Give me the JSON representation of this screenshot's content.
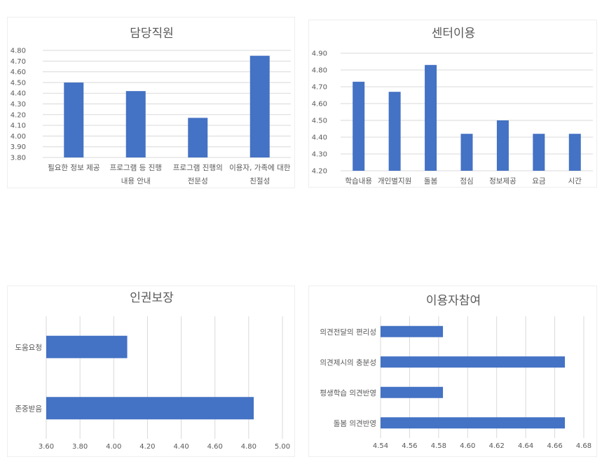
{
  "colors": {
    "bar": "#4472c4",
    "grid": "#d9d9d9",
    "text": "#595959"
  },
  "chart_data": [
    {
      "type": "bar",
      "orientation": "vertical",
      "title": "담당직원",
      "categories": [
        [
          "필요한 정보 제공"
        ],
        [
          "프로그램 등 진행",
          "내용 안내"
        ],
        [
          "프로그램 진행의",
          "전문성"
        ],
        [
          "이용자, 가족에 대한",
          "친절성"
        ]
      ],
      "values": [
        4.5,
        4.42,
        4.17,
        4.75
      ],
      "ylim": [
        3.8,
        4.8
      ],
      "yticks": [
        "3.80",
        "3.90",
        "4.00",
        "4.10",
        "4.20",
        "4.30",
        "4.40",
        "4.50",
        "4.60",
        "4.70",
        "4.80"
      ],
      "grid": true
    },
    {
      "type": "bar",
      "orientation": "vertical",
      "title": "센터이용",
      "categories": [
        [
          "학습내용"
        ],
        [
          "개인별지원"
        ],
        [
          "돌봄"
        ],
        [
          "점심"
        ],
        [
          "정보제공"
        ],
        [
          "요금"
        ],
        [
          "시간"
        ]
      ],
      "values": [
        4.73,
        4.67,
        4.83,
        4.42,
        4.5,
        4.42,
        4.42
      ],
      "ylim": [
        4.2,
        4.9
      ],
      "yticks": [
        "4.20",
        "4.30",
        "4.40",
        "4.50",
        "4.60",
        "4.70",
        "4.80",
        "4.90"
      ],
      "grid": true
    },
    {
      "type": "bar",
      "orientation": "horizontal",
      "title": "인권보장",
      "categories": [
        "도움요청",
        "존중받음"
      ],
      "values": [
        4.08,
        4.83
      ],
      "xlim": [
        3.6,
        5.0
      ],
      "xticks": [
        "3.60",
        "3.80",
        "4.00",
        "4.20",
        "4.40",
        "4.60",
        "4.80",
        "5.00"
      ],
      "grid": true
    },
    {
      "type": "bar",
      "orientation": "horizontal",
      "title": "이용자참여",
      "categories": [
        "의견전달의 편리성",
        "의견제시의 충분성",
        "평생학습 의견반영",
        "돌봄 의견반영"
      ],
      "values": [
        4.583,
        4.667,
        4.583,
        4.667
      ],
      "xlim": [
        4.54,
        4.68
      ],
      "xticks": [
        "4.54",
        "4.56",
        "4.58",
        "4.60",
        "4.62",
        "4.64",
        "4.66",
        "4.68"
      ],
      "grid": true
    }
  ]
}
